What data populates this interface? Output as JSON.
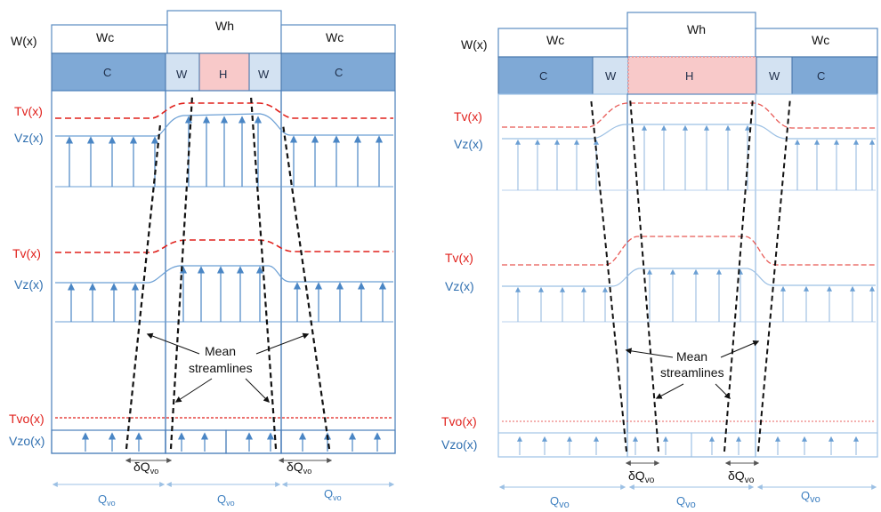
{
  "left_panel": {
    "w_label": "W(x)",
    "wc_left": "Wc",
    "wh": "Wh",
    "wc_right": "Wc",
    "zones": [
      "C",
      "W",
      "H",
      "W",
      "C"
    ],
    "tv_label_1": "Tv(x)",
    "vz_label_1": "Vz(x)",
    "tv_label_2": "Tv(x)",
    "vz_label_2": "Vz(x)",
    "tvo_label": "Tvo(x)",
    "vzo_label": "Vzo(x)",
    "mean_line1": "Mean",
    "mean_line2": "streamlines",
    "dq_left": "δQ",
    "dq_right": "δQ",
    "dq_sub": "vo",
    "q_main": "Q",
    "q_sub": "vo"
  },
  "right_panel": {
    "w_label": "W(x)",
    "wc_left": "Wc",
    "wh": "Wh",
    "wc_right": "Wc",
    "zones": [
      "C",
      "W",
      "H",
      "W",
      "C"
    ],
    "tv_label_1": "Tv(x)",
    "vz_label_1": "Vz(x)",
    "tv_label_2": "Tv(x)",
    "vz_label_2": "Vz(x)",
    "tvo_label": "Tvo(x)",
    "vzo_label": "Vzo(x)",
    "mean_line1": "Mean",
    "mean_line2": "streamlines",
    "dq_left": "δQ",
    "dq_right": "δQ",
    "dq_sub": "vo",
    "q_main": "Q",
    "q_sub": "vo"
  },
  "colors": {
    "cold_zone": "#7fa9d6",
    "wall_zone": "#d3e2f2",
    "hot_zone": "#f8c9c9",
    "temperature": "#e0211c",
    "velocity": "#4a86c5",
    "streamline": "#111111"
  }
}
